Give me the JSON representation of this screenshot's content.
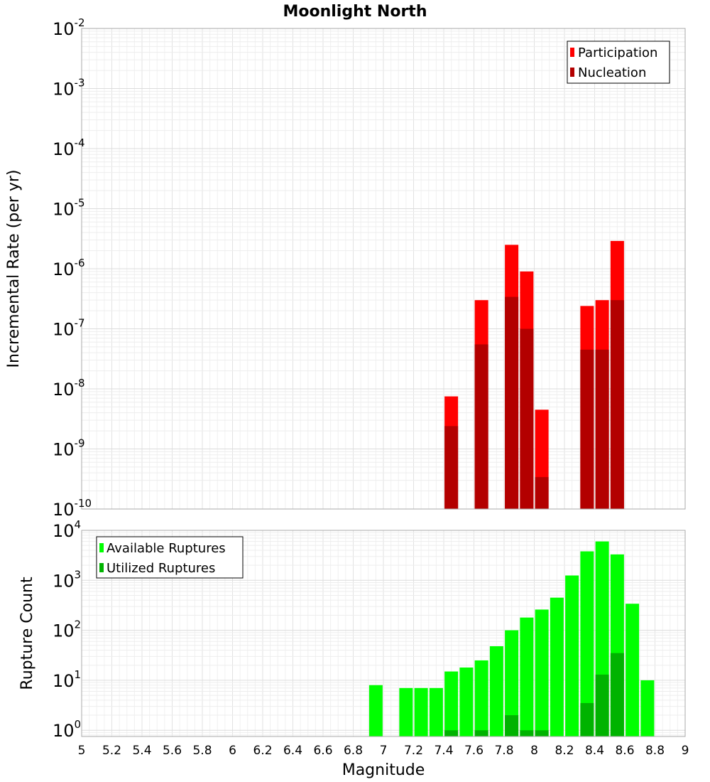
{
  "chart_data": [
    {
      "type": "bar",
      "title": "Moonlight North",
      "ylabel": "Incremental Rate (per yr)",
      "xlabel": "",
      "y_scale": "log",
      "ylim": [
        1e-10,
        0.01
      ],
      "y_ticks": [
        {
          "base": "10",
          "exp": "-2"
        },
        {
          "base": "10",
          "exp": "-3"
        },
        {
          "base": "10",
          "exp": "-4"
        },
        {
          "base": "10",
          "exp": "-5"
        },
        {
          "base": "10",
          "exp": "-6"
        },
        {
          "base": "10",
          "exp": "-7"
        },
        {
          "base": "10",
          "exp": "-8"
        },
        {
          "base": "10",
          "exp": "-9"
        },
        {
          "base": "10",
          "exp": "-10"
        }
      ],
      "xlim": [
        5,
        9
      ],
      "grid": true,
      "legend_position": "top-right",
      "series": [
        {
          "name": "Participation",
          "color": "#ff0000",
          "x": [
            7.45,
            7.65,
            7.85,
            7.95,
            8.05,
            8.35,
            8.45,
            8.55
          ],
          "values": [
            7.5e-09,
            3e-07,
            2.5e-06,
            9e-07,
            4.5e-09,
            2.4e-07,
            3e-07,
            2.9e-06
          ]
        },
        {
          "name": "Nucleation",
          "color": "#b30000",
          "x": [
            7.45,
            7.65,
            7.85,
            7.95,
            8.05,
            8.35,
            8.45,
            8.55
          ],
          "values": [
            2.4e-09,
            5.5e-08,
            3.4e-07,
            1e-07,
            3.4e-10,
            4.5e-08,
            4.5e-08,
            3e-07
          ]
        }
      ]
    },
    {
      "type": "bar",
      "ylabel": "Rupture Count",
      "xlabel": "Magnitude",
      "y_scale": "log",
      "ylim": [
        0.75,
        10000
      ],
      "y_ticks": [
        {
          "base": "10",
          "exp": "4"
        },
        {
          "base": "10",
          "exp": "3"
        },
        {
          "base": "10",
          "exp": "2"
        },
        {
          "base": "10",
          "exp": "1"
        },
        {
          "base": "10",
          "exp": "0"
        }
      ],
      "xlim": [
        5,
        9
      ],
      "x_tick_labels": [
        "5",
        "5.2",
        "5.4",
        "5.6",
        "5.8",
        "6",
        "6.2",
        "6.4",
        "6.6",
        "6.8",
        "7",
        "7.2",
        "7.4",
        "7.6",
        "7.8",
        "8",
        "8.2",
        "8.4",
        "8.6",
        "8.8",
        "9"
      ],
      "grid": true,
      "legend_position": "top-left",
      "series": [
        {
          "name": "Available Ruptures",
          "color": "#00ff00",
          "x": [
            6.95,
            7.15,
            7.25,
            7.35,
            7.45,
            7.55,
            7.65,
            7.75,
            7.85,
            7.95,
            8.05,
            8.15,
            8.25,
            8.35,
            8.45,
            8.55,
            8.65,
            8.75
          ],
          "values": [
            8,
            7,
            7,
            7,
            15,
            18,
            25,
            48,
            100,
            180,
            260,
            450,
            1250,
            3800,
            6000,
            3300,
            340,
            10
          ]
        },
        {
          "name": "Utilized Ruptures",
          "color": "#00b300",
          "x": [
            7.45,
            7.65,
            7.85,
            7.95,
            8.05,
            8.35,
            8.45,
            8.55
          ],
          "values": [
            1,
            1,
            2,
            1,
            1,
            3.5,
            13,
            35
          ]
        }
      ]
    }
  ]
}
